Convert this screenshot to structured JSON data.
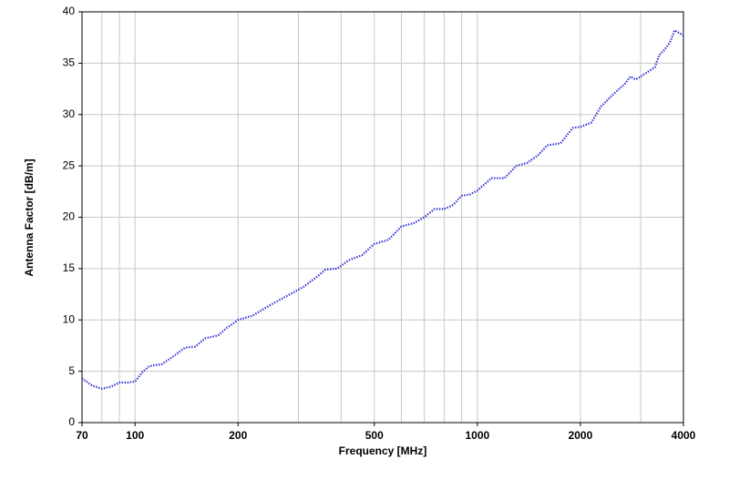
{
  "chart_data": {
    "type": "line",
    "xlabel": "Frequency [MHz]",
    "ylabel": "Antenna Factor [dB/m]",
    "xscale": "log",
    "grid": true,
    "xlim": [
      70,
      4000
    ],
    "ylim": [
      0,
      40
    ],
    "xticks": [
      70,
      100,
      200,
      500,
      1000,
      2000,
      4000
    ],
    "xgrid_minor": [
      80,
      90,
      300,
      400,
      600,
      700,
      800,
      900,
      3000
    ],
    "yticks": [
      0,
      5,
      10,
      15,
      20,
      25,
      30,
      35,
      40
    ],
    "series": [
      {
        "color": "#2b2bd6",
        "x": [
          70,
          75,
          80,
          85,
          90,
          95,
          100,
          105,
          110,
          120,
          130,
          140,
          150,
          160,
          175,
          185,
          200,
          220,
          250,
          280,
          310,
          340,
          360,
          390,
          420,
          460,
          500,
          550,
          600,
          650,
          700,
          750,
          800,
          850,
          900,
          950,
          1000,
          1100,
          1200,
          1300,
          1400,
          1500,
          1600,
          1750,
          1900,
          2000,
          2150,
          2300,
          2500,
          2700,
          2800,
          2900,
          3100,
          3300,
          3400,
          3500,
          3650,
          3770,
          4000
        ],
        "values": [
          4.3,
          3.6,
          3.3,
          3.5,
          3.9,
          3.9,
          4.0,
          4.9,
          5.5,
          5.7,
          6.5,
          7.3,
          7.4,
          8.2,
          8.5,
          9.2,
          10.0,
          10.4,
          11.5,
          12.4,
          13.2,
          14.2,
          14.9,
          15.0,
          15.8,
          16.3,
          17.4,
          17.8,
          19.1,
          19.4,
          20.0,
          20.8,
          20.8,
          21.2,
          22.1,
          22.2,
          22.6,
          23.8,
          23.8,
          25.0,
          25.3,
          26.0,
          27.0,
          27.2,
          28.7,
          28.8,
          29.2,
          30.8,
          32.0,
          33.0,
          33.7,
          33.4,
          34.0,
          34.6,
          35.8,
          36.2,
          37.0,
          38.2,
          37.7
        ]
      }
    ]
  }
}
